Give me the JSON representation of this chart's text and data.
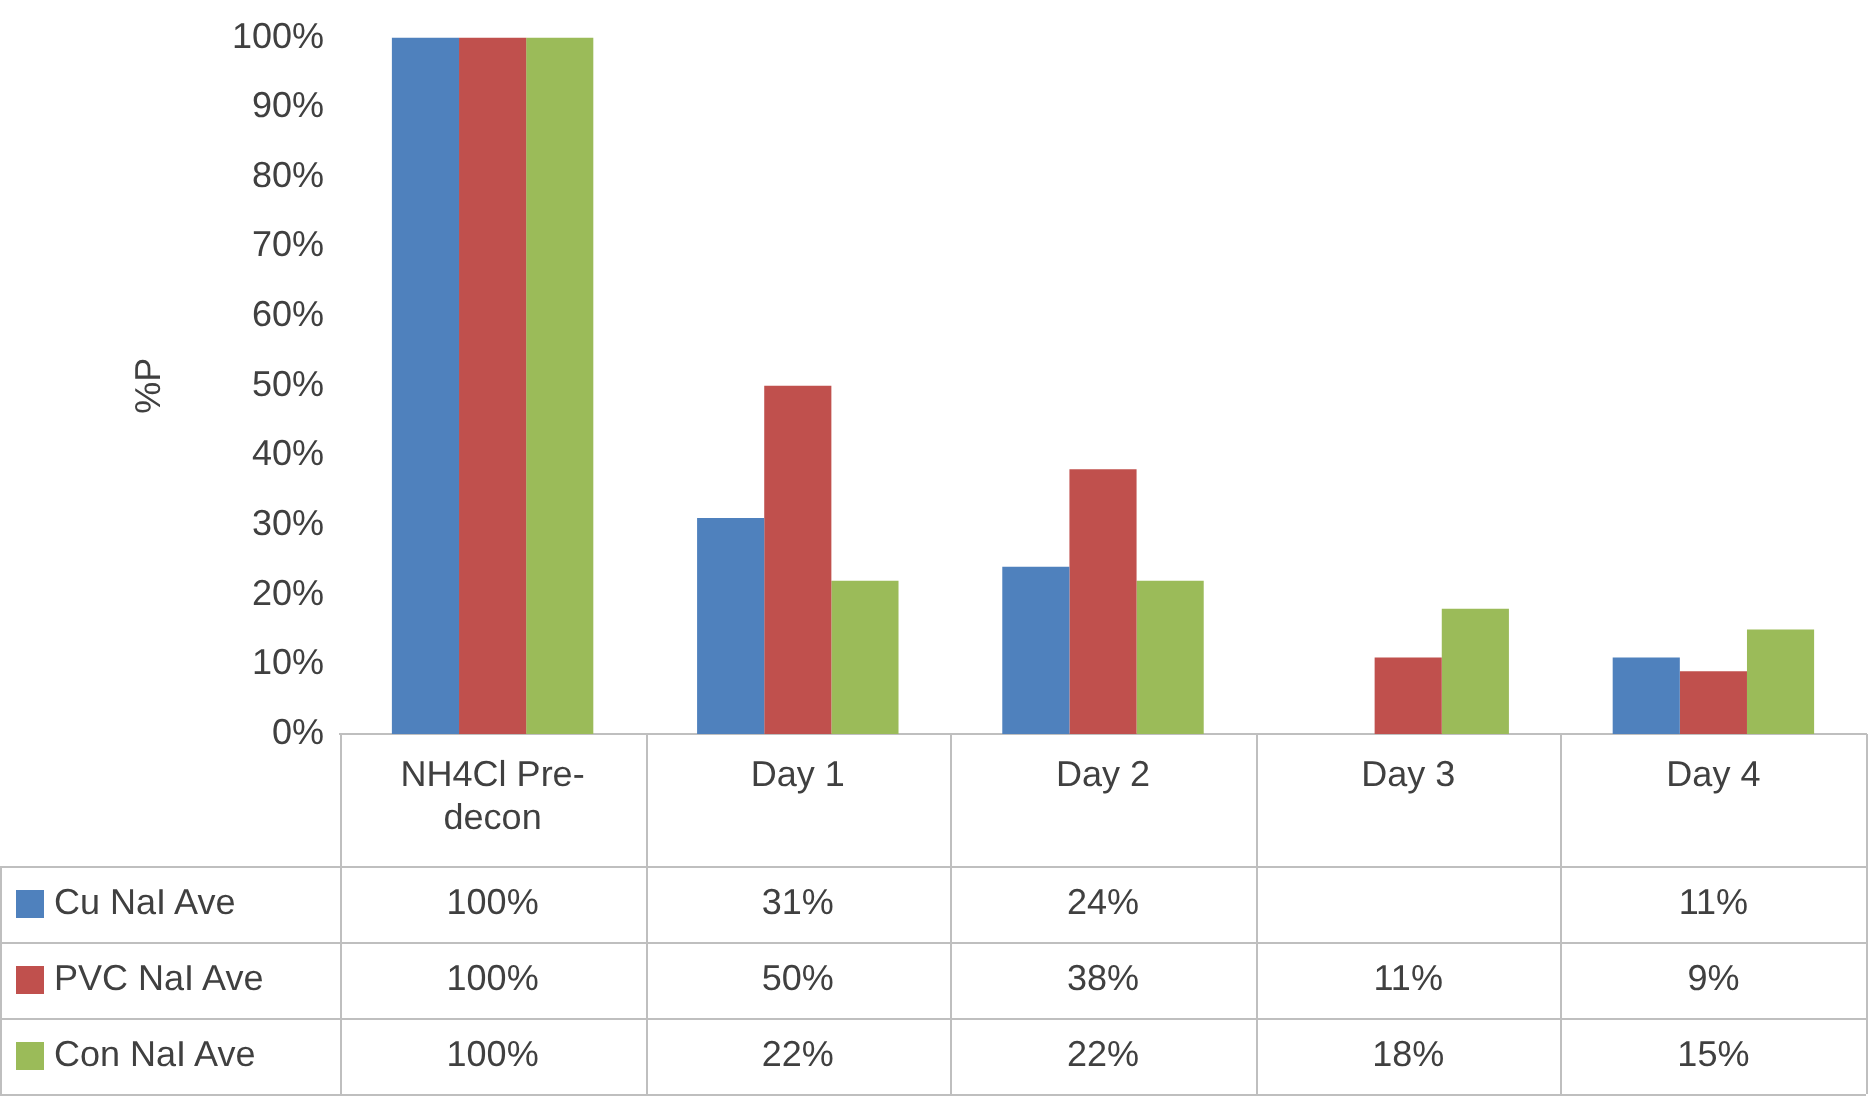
{
  "chart_data": {
    "type": "bar",
    "ylabel": "%P",
    "categories": [
      "NH4Cl Pre-decon",
      "Day 1",
      "Day 2",
      "Day 3",
      "Day 4"
    ],
    "series": [
      {
        "name": "Cu NaI Ave",
        "color": "#4f81bd",
        "values": [
          100,
          31,
          24,
          null,
          11
        ],
        "value_labels": [
          "100%",
          "31%",
          "24%",
          null,
          "11%"
        ]
      },
      {
        "name": "PVC NaI Ave",
        "color": "#c0504d",
        "values": [
          100,
          50,
          38,
          11,
          9
        ],
        "value_labels": [
          "100%",
          "50%",
          "38%",
          "11%",
          "9%"
        ]
      },
      {
        "name": "Con NaI Ave",
        "color": "#9bbb59",
        "values": [
          100,
          22,
          22,
          18,
          15
        ],
        "value_labels": [
          "100%",
          "22%",
          "22%",
          "18%",
          "15%"
        ]
      }
    ],
    "ylim": [
      0,
      100
    ],
    "yticks": [
      {
        "value": 0,
        "label": "0%"
      },
      {
        "value": 10,
        "label": "10%"
      },
      {
        "value": 20,
        "label": "20%"
      },
      {
        "value": 30,
        "label": "30%"
      },
      {
        "value": 40,
        "label": "40%"
      },
      {
        "value": 50,
        "label": "50%"
      },
      {
        "value": 60,
        "label": "60%"
      },
      {
        "value": 70,
        "label": "70%"
      },
      {
        "value": 80,
        "label": "80%"
      },
      {
        "value": 90,
        "label": "90%"
      },
      {
        "value": 100,
        "label": "100%"
      }
    ],
    "legend": "bottom",
    "grid": false
  }
}
